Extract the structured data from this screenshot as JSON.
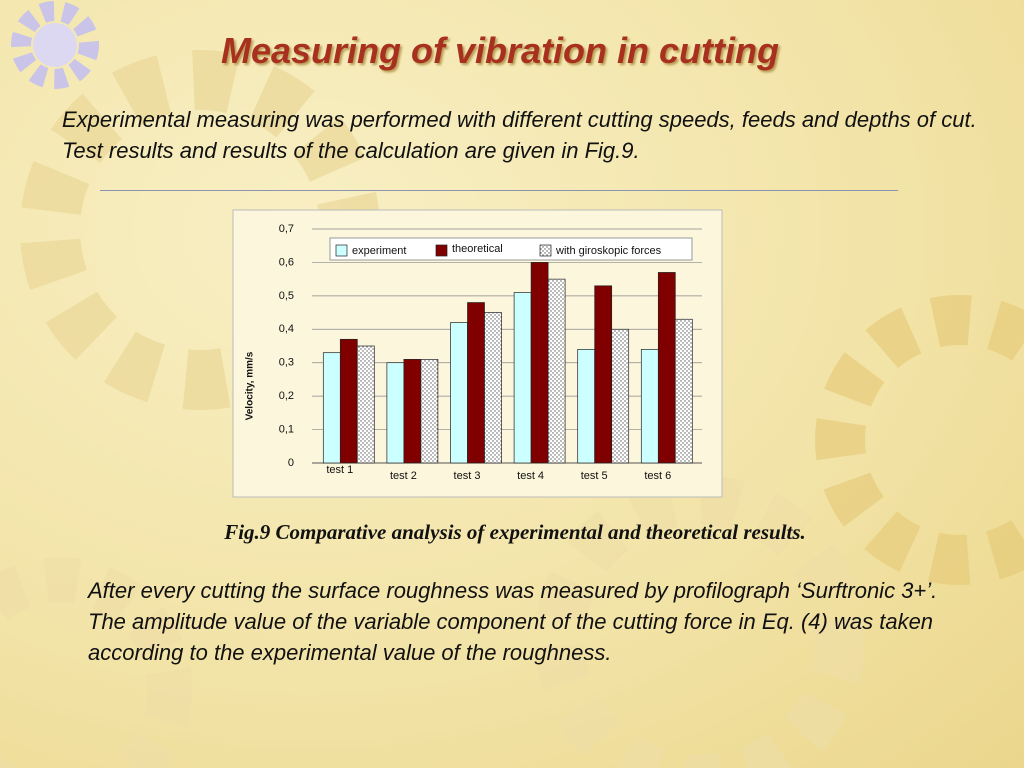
{
  "title": "Measuring of vibration in cutting",
  "intro": "Experimental measuring was performed with different cutting speeds, feeds and depths of cut. Test results and results of the calculation are given in Fig.9.",
  "caption": "Fig.9 Comparative analysis of experimental and theoretical results.",
  "body": "After every cutting the surface roughness was measured by profilograph ‘Surftronic 3+’.  The amplitude value  of the variable component of the cutting force in Eq. (4) was taken according to the experimental value of the roughness.",
  "chart_data": {
    "type": "bar",
    "y_label": "Velocity,  mm/s",
    "annotation": "0",
    "categories": [
      "test 1",
      "test 2",
      "test 3",
      "test 4",
      "test 5",
      "test 6"
    ],
    "series": [
      {
        "name": "experiment",
        "color": "#ccffff",
        "values": [
          0.33,
          0.3,
          0.42,
          0.51,
          0.34,
          0.34
        ]
      },
      {
        "name": "theoretical",
        "color": "#800000",
        "values": [
          0.37,
          0.31,
          0.48,
          0.6,
          0.53,
          0.57
        ]
      },
      {
        "name": "with giroskopic forces",
        "color": "#ffffff",
        "pattern": "dots",
        "values": [
          0.35,
          0.31,
          0.45,
          0.55,
          0.4,
          0.43
        ]
      }
    ],
    "ylim": [
      0,
      0.7
    ],
    "yticks": [
      0,
      {
        "value": 0.1,
        "label": "0,1"
      },
      {
        "value": 0.2,
        "label": "0,2"
      },
      {
        "value": 0.3,
        "label": "0,3"
      },
      {
        "value": 0.4,
        "label": "0,4"
      },
      {
        "value": 0.5,
        "label": "0,5"
      },
      {
        "value": 0.6,
        "label": "0,6"
      },
      {
        "value": 0.7,
        "label": "0,7"
      }
    ],
    "grid": true,
    "legend": "top"
  }
}
